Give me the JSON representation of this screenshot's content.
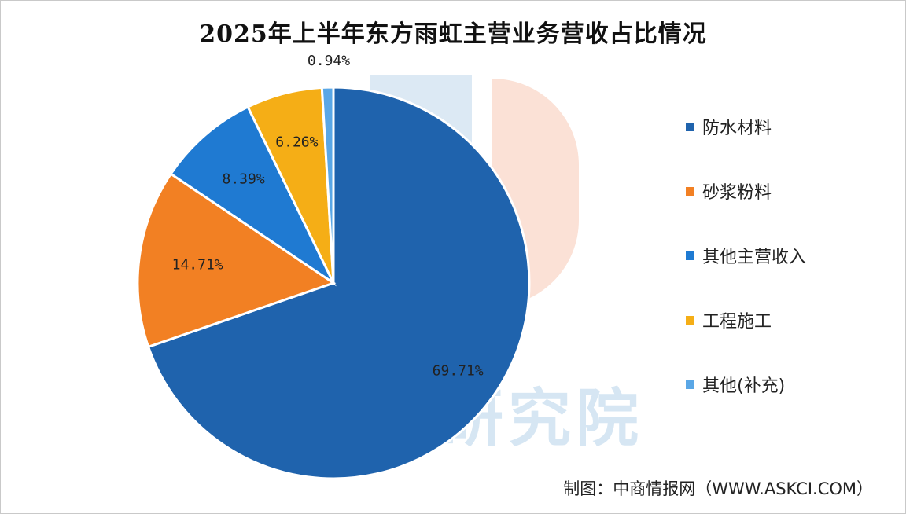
{
  "chart_data": {
    "type": "pie",
    "title": "2025年上半年东方雨虹主营业务营收占比情况",
    "slices": [
      {
        "name": "防水材料",
        "value": 69.71,
        "label": "69.71%",
        "color": "#1f63ad"
      },
      {
        "name": "砂浆粉料",
        "value": 14.71,
        "label": "14.71%",
        "color": "#f28023"
      },
      {
        "name": "其他主营收入",
        "value": 8.39,
        "label": "8.39%",
        "color": "#1f7ad2"
      },
      {
        "name": "工程施工",
        "value": 6.26,
        "label": "6.26%",
        "color": "#f5ae16"
      },
      {
        "name": "其他(补充)",
        "value": 0.94,
        "label": "0.94%",
        "color": "#5aa7e6"
      }
    ],
    "legend_position": "right",
    "start_angle_note": "clockwise from top"
  },
  "source": "制图：中商情报网（WWW.ASKCI.COM）",
  "watermark": "研究院"
}
